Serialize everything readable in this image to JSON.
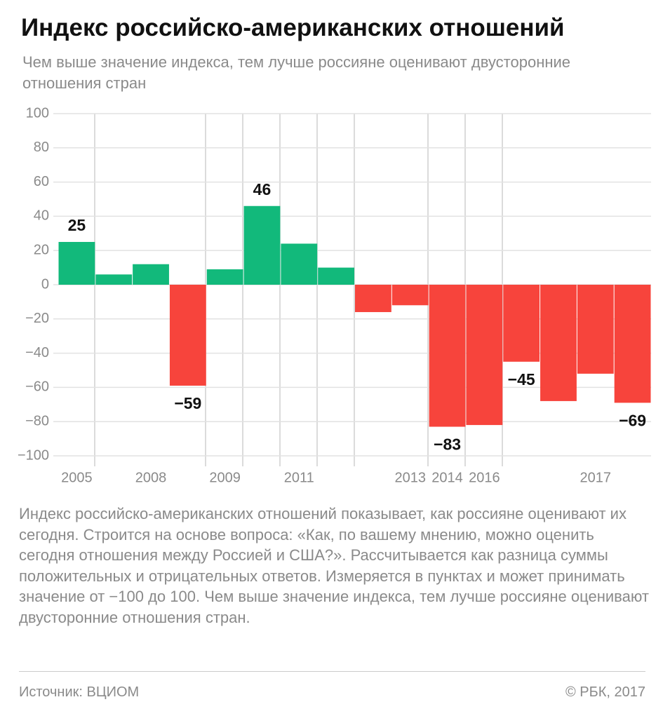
{
  "chart_data": {
    "type": "bar",
    "title": "Индекс российско-американских отношений",
    "subtitle": "Чем выше значение индекса, тем лучше россияне оценивают двусторонние отношения стран",
    "description": "Индекс российско-американских отношений показывает, как россияне оценивают их сегодня. Строится на основе вопроса: «Как, по вашему мнению, можно оценить сегодня отношения между Россией и США?». Рассчитывается как разница суммы положительных и отрицательных ответов. Измеряется в пунктах и может принимать значение от −100 до 100. Чем выше значение индекса, тем лучше россияне оценивают двусторонние отношения стран.",
    "source": "Источник: ВЦИОМ",
    "copyright": "© РБК, 2017",
    "categories": [
      "2005",
      null,
      "2008",
      null,
      "2009",
      null,
      "2011",
      null,
      null,
      "2013",
      "2014",
      "2016",
      null,
      null,
      "2017",
      null
    ],
    "values": [
      25,
      6,
      12,
      -59,
      9,
      46,
      24,
      10,
      -16,
      -12,
      -83,
      -82,
      -45,
      -68,
      -52,
      -69
    ],
    "value_labels": [
      "25",
      null,
      null,
      "−59",
      null,
      "46",
      null,
      null,
      null,
      null,
      "−83",
      null,
      "−45",
      null,
      null,
      "−69"
    ],
    "positive_color": "#12b97b",
    "negative_color": "#f7443c",
    "ylim": [
      -100,
      100
    ],
    "yticks": [
      {
        "value": -100,
        "label": "−100"
      },
      {
        "value": -80,
        "label": "−80"
      },
      {
        "value": -60,
        "label": "−60"
      },
      {
        "value": -40,
        "label": "−40"
      },
      {
        "value": -20,
        "label": "−20"
      },
      0,
      20,
      40,
      60,
      80,
      100
    ],
    "grid": true
  }
}
